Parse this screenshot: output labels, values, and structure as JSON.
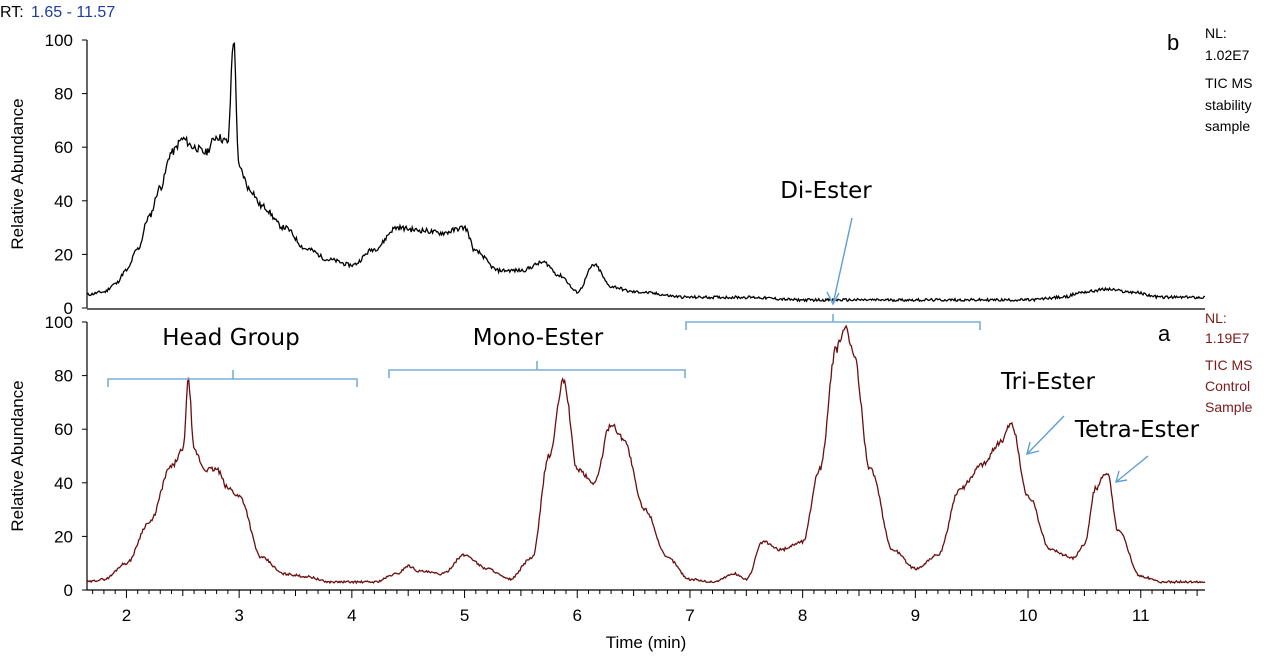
{
  "rt_label": "RT:",
  "rt_range": "1.65 - 11.57",
  "colors": {
    "trace_top": "#000000",
    "trace_bottom": "#6a0f0f",
    "rt_range": "#1f3c9e",
    "annotation": "#6fa8d8"
  },
  "panel_b": {
    "letter": "b",
    "nl": [
      "NL:",
      "1.02E7",
      "TIC  MS",
      "stability",
      "sample"
    ],
    "ylabel": "Relative Abundance"
  },
  "panel_a": {
    "letter": "a",
    "nl": [
      "NL:",
      "1.19E7",
      "TIC  MS",
      "Control",
      "Sample"
    ],
    "ylabel": "Relative Abundance"
  },
  "xlabel": "Time (min)",
  "annotations": {
    "head_group": "Head Group",
    "mono_ester": "Mono-Ester",
    "di_ester": "Di-Ester",
    "tri_ester": "Tri-Ester",
    "tetra_ester": "Tetra-Ester"
  },
  "chart_data": [
    {
      "type": "line",
      "series": [
        {
          "x": [
            1.65,
            1.8,
            1.9,
            2.0,
            2.1,
            2.2,
            2.3,
            2.4,
            2.5,
            2.6,
            2.7,
            2.8,
            2.9,
            2.95,
            3.0,
            3.1,
            3.2,
            3.4,
            3.6,
            3.8,
            4.0,
            4.2,
            4.4,
            4.6,
            4.8,
            5.0,
            5.1,
            5.3,
            5.5,
            5.7,
            5.85,
            6.0,
            6.15,
            6.3,
            6.5,
            7.0,
            7.5,
            8.0,
            8.5,
            9.0,
            9.5,
            10.0,
            10.3,
            10.5,
            10.7,
            10.9,
            11.2,
            11.57
          ],
          "y": [
            5,
            6,
            9,
            14,
            22,
            34,
            45,
            58,
            63,
            60,
            58,
            64,
            62,
            100,
            52,
            44,
            38,
            30,
            22,
            18,
            16,
            22,
            30,
            29,
            28,
            30,
            21,
            14,
            14,
            17,
            12,
            6,
            16,
            8,
            6,
            4,
            4,
            3,
            3,
            3,
            3,
            3,
            4,
            6,
            7,
            6,
            4,
            4
          ]
        }
      ],
      "xlim": [
        1.65,
        11.57
      ],
      "ylim": [
        0,
        100
      ],
      "yticks": [
        0,
        20,
        40,
        60,
        80,
        100
      ]
    },
    {
      "type": "line",
      "series": [
        {
          "x": [
            1.65,
            1.8,
            2.0,
            2.2,
            2.4,
            2.5,
            2.55,
            2.6,
            2.7,
            2.8,
            2.9,
            3.0,
            3.2,
            3.4,
            3.6,
            3.8,
            4.0,
            4.2,
            4.4,
            4.5,
            4.6,
            4.8,
            5.0,
            5.2,
            5.4,
            5.6,
            5.75,
            5.88,
            6.0,
            6.15,
            6.3,
            6.4,
            6.6,
            6.8,
            7.0,
            7.2,
            7.4,
            7.5,
            7.65,
            7.8,
            8.0,
            8.15,
            8.3,
            8.38,
            8.45,
            8.6,
            8.8,
            9.0,
            9.2,
            9.4,
            9.6,
            9.75,
            9.85,
            10.0,
            10.2,
            10.4,
            10.5,
            10.6,
            10.7,
            10.8,
            11.0,
            11.2,
            11.57
          ],
          "y": [
            3,
            4,
            10,
            25,
            46,
            52,
            78,
            52,
            45,
            45,
            38,
            35,
            12,
            6,
            5,
            3,
            3,
            3,
            6,
            9,
            7,
            6,
            13,
            8,
            4,
            12,
            50,
            78,
            45,
            40,
            62,
            57,
            30,
            12,
            4,
            3,
            6,
            4,
            18,
            15,
            18,
            45,
            90,
            98,
            88,
            45,
            15,
            8,
            13,
            38,
            47,
            55,
            62,
            35,
            15,
            12,
            17,
            38,
            44,
            22,
            5,
            3,
            3
          ]
        }
      ],
      "xlim": [
        1.65,
        11.57
      ],
      "ylim": [
        0,
        100
      ],
      "yticks": [
        0,
        20,
        40,
        60,
        80,
        100
      ],
      "xticks": [
        2,
        3,
        4,
        5,
        6,
        7,
        8,
        9,
        10,
        11
      ]
    }
  ]
}
